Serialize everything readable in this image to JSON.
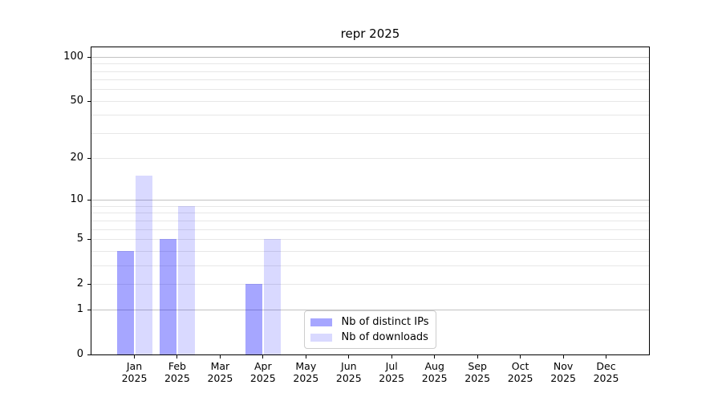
{
  "title": "repr 2025",
  "chart_data": {
    "type": "bar",
    "title": "repr 2025",
    "xlabel": "",
    "ylabel": "",
    "y_scale": "log10(1+y)",
    "ylim": [
      0,
      116
    ],
    "grid": "on",
    "legend_position": "lower center",
    "categories": [
      "Jan 2025",
      "Feb 2025",
      "Mar 2025",
      "Apr 2025",
      "May 2025",
      "Jun 2025",
      "Jul 2025",
      "Aug 2025",
      "Sep 2025",
      "Oct 2025",
      "Nov 2025",
      "Dec 2025"
    ],
    "series": [
      {
        "name": "Nb of distinct IPs",
        "color": "rgba(0,0,255,0.35)",
        "values": [
          4,
          5,
          0,
          2,
          0,
          0,
          0,
          0,
          0,
          0,
          0,
          0
        ]
      },
      {
        "name": "Nb of downloads",
        "color": "rgba(0,0,255,0.15)",
        "values": [
          15,
          9,
          0,
          5,
          0,
          0,
          0,
          0,
          0,
          0,
          0,
          0
        ]
      }
    ],
    "y_ticks": [
      100,
      50,
      20,
      10,
      5,
      2,
      1,
      0
    ],
    "grid_major_lines": [
      1,
      10,
      100
    ],
    "grid_minor_lines": [
      2,
      3,
      4,
      5,
      6,
      7,
      8,
      9,
      20,
      30,
      40,
      50,
      60,
      70,
      80,
      90
    ],
    "colors": {
      "grid_minor": "#e7e7e7",
      "grid_major": "#c2c2c2",
      "spine": "#000000",
      "legend_border": "#cccccc"
    }
  }
}
